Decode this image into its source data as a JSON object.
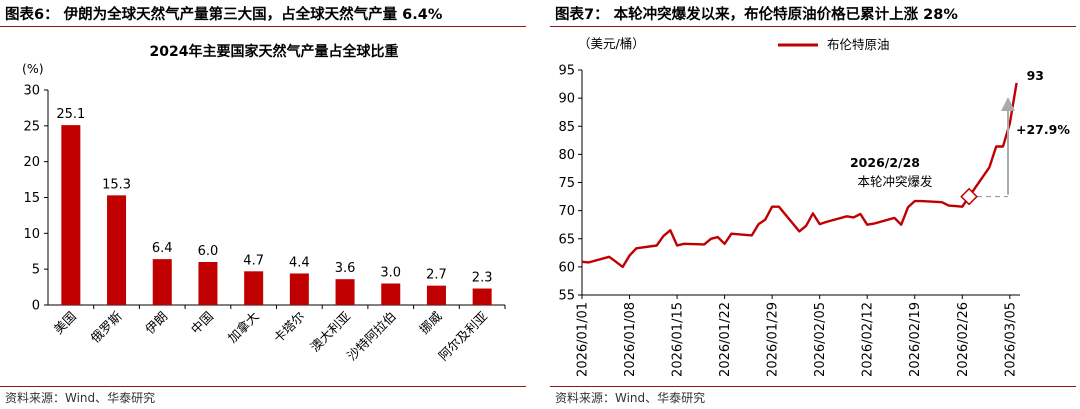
{
  "left": {
    "header": "图表6： 伊朗为全球天然气产量第三大国，占全球天然气产量 6.4%",
    "source": "资料来源：Wind、华泰研究"
  },
  "right": {
    "header": "图表7： 本轮冲突爆发以来，布伦特原油价格已累计上涨 28%",
    "source": "资料来源：Wind、华泰研究"
  },
  "chart_data": [
    {
      "type": "bar",
      "title": "2024年主要国家天然气产量占全球比重",
      "unit_label": "(%)",
      "ylim": [
        0,
        30
      ],
      "yticks": [
        0,
        5,
        10,
        15,
        20,
        25,
        30
      ],
      "categories": [
        "美国",
        "俄罗斯",
        "伊朗",
        "中国",
        "加拿大",
        "卡塔尔",
        "澳大利亚",
        "沙特阿拉伯",
        "挪威",
        "阿尔及利亚"
      ],
      "values": [
        25.1,
        15.3,
        6.4,
        6.0,
        4.7,
        4.4,
        3.6,
        3.0,
        2.7,
        2.3
      ],
      "value_labels": [
        "25.1",
        "15.3",
        "6.4",
        "6.0",
        "4.7",
        "4.4",
        "3.6",
        "3.0",
        "2.7",
        "2.3"
      ],
      "color": "#c00000",
      "grid": false
    },
    {
      "type": "line",
      "unit_label": "（美元/桶）",
      "ylim": [
        55,
        95
      ],
      "yticks": [
        55,
        60,
        65,
        70,
        75,
        80,
        85,
        90,
        95
      ],
      "x_ticks": [
        "2026/01/01",
        "2026/01/08",
        "2026/01/15",
        "2026/01/22",
        "2026/01/29",
        "2026/02/05",
        "2026/02/12",
        "2026/02/19",
        "2026/02/26",
        "2026/03/05"
      ],
      "series": [
        {
          "name": "布伦特原油",
          "color": "#c00000",
          "x": [
            "2026/01/01",
            "2026/01/02",
            "2026/01/05",
            "2026/01/06",
            "2026/01/07",
            "2026/01/08",
            "2026/01/09",
            "2026/01/12",
            "2026/01/13",
            "2026/01/14",
            "2026/01/15",
            "2026/01/16",
            "2026/01/19",
            "2026/01/20",
            "2026/01/21",
            "2026/01/22",
            "2026/01/23",
            "2026/01/26",
            "2026/01/27",
            "2026/01/28",
            "2026/01/29",
            "2026/01/30",
            "2026/02/02",
            "2026/02/03",
            "2026/02/04",
            "2026/02/05",
            "2026/02/06",
            "2026/02/09",
            "2026/02/10",
            "2026/02/11",
            "2026/02/12",
            "2026/02/13",
            "2026/02/16",
            "2026/02/17",
            "2026/02/18",
            "2026/02/19",
            "2026/02/20",
            "2026/02/23",
            "2026/02/24",
            "2026/02/25",
            "2026/02/26",
            "2026/02/27",
            "2026/03/02",
            "2026/03/03",
            "2026/03/04",
            "2026/03/05",
            "2026/03/06"
          ],
          "y": [
            60.9,
            60.8,
            61.8,
            60.9,
            60.0,
            62.0,
            63.3,
            63.8,
            65.5,
            66.5,
            63.8,
            64.1,
            64.0,
            65.0,
            65.3,
            64.1,
            65.9,
            65.6,
            67.6,
            68.4,
            70.7,
            70.7,
            66.3,
            67.3,
            69.5,
            67.6,
            68.0,
            69.0,
            68.8,
            69.4,
            67.5,
            67.7,
            68.7,
            67.5,
            70.6,
            71.7,
            71.7,
            71.5,
            70.9,
            70.8,
            70.7,
            72.5,
            77.7,
            81.4,
            81.4,
            85.5,
            92.7
          ]
        }
      ],
      "annotations": {
        "event_date": "2026/2/28",
        "event_text": "本轮冲突爆发",
        "change_label": "+27.9%",
        "end_label": "93"
      },
      "grid": false
    }
  ]
}
